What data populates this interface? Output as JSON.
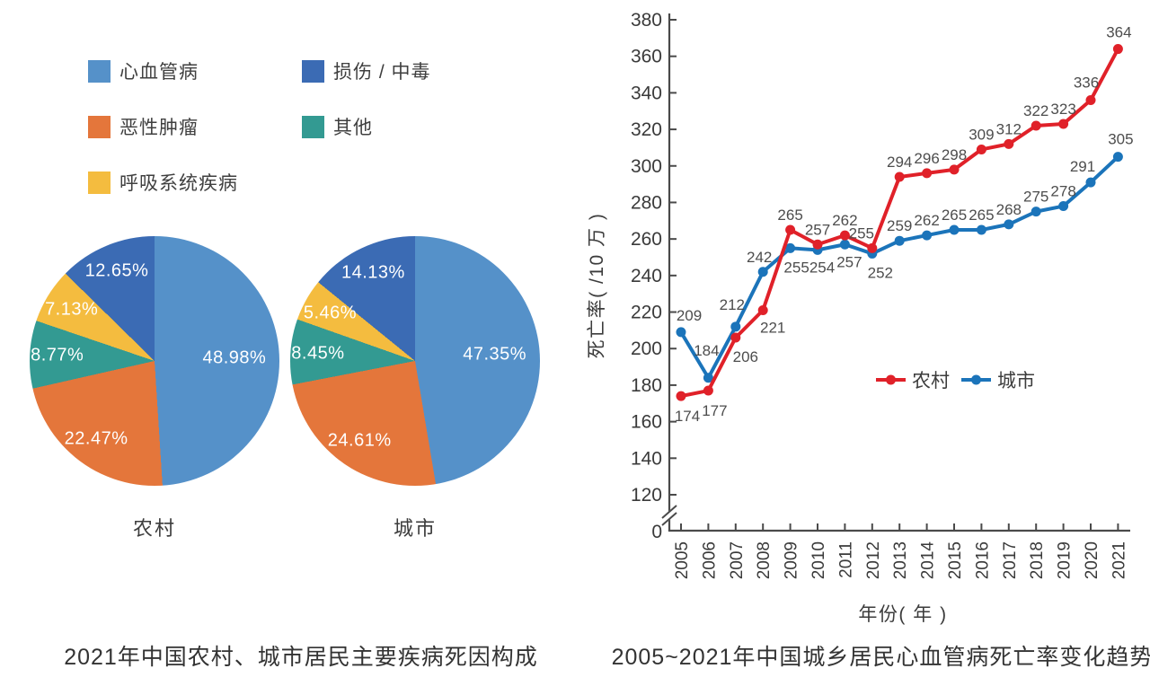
{
  "page": {
    "background": "#ffffff"
  },
  "chart_data": [
    {
      "type": "pie",
      "title": "2021年中国农村、城市居民主要疾病死因构成",
      "unit": "%",
      "legend": [
        {
          "label": "心血管病",
          "color": "#5591c9"
        },
        {
          "label": "恶性肿瘤",
          "color": "#e4763b"
        },
        {
          "label": "呼吸系统疾病",
          "color": "#f4bc3f"
        },
        {
          "label": "损伤 / 中毒",
          "color": "#3b6bb4"
        },
        {
          "label": "其他",
          "color": "#339a92"
        }
      ],
      "pies": [
        {
          "label": "农村",
          "slices": [
            {
              "category": "心血管病",
              "value": 48.98
            },
            {
              "category": "恶性肿瘤",
              "value": 22.47
            },
            {
              "category": "其他",
              "value": 8.77
            },
            {
              "category": "呼吸系统疾病",
              "value": 7.13
            },
            {
              "category": "损伤 / 中毒",
              "value": 12.65
            }
          ]
        },
        {
          "label": "城市",
          "slices": [
            {
              "category": "心血管病",
              "value": 47.35
            },
            {
              "category": "恶性肿瘤",
              "value": 24.61
            },
            {
              "category": "其他",
              "value": 8.45
            },
            {
              "category": "呼吸系统疾病",
              "value": 5.46
            },
            {
              "category": "损伤 / 中毒",
              "value": 14.13
            }
          ]
        }
      ]
    },
    {
      "type": "line",
      "title": "2005~2021年中国城乡居民心血管病死亡率变化趋势",
      "xlabel": "年份( 年 )",
      "ylabel": "死亡率( /10 万 )",
      "x": [
        2005,
        2006,
        2007,
        2008,
        2009,
        2010,
        2011,
        2012,
        2013,
        2014,
        2015,
        2016,
        2017,
        2018,
        2019,
        2020,
        2021
      ],
      "series": [
        {
          "name": "农村",
          "color": "#e02129",
          "values": [
            174,
            177,
            206,
            221,
            265,
            257,
            262,
            255,
            294,
            296,
            298,
            309,
            312,
            322,
            323,
            336,
            364
          ]
        },
        {
          "name": "城市",
          "color": "#1b74ba",
          "values": [
            209,
            184,
            212,
            242,
            255,
            254,
            257,
            252,
            259,
            262,
            265,
            265,
            268,
            275,
            278,
            291,
            305
          ]
        }
      ],
      "ylim": [
        0,
        380
      ],
      "yticks": [
        0,
        120,
        140,
        160,
        180,
        200,
        220,
        240,
        260,
        280,
        300,
        320,
        340,
        360,
        380
      ],
      "axis_break_between": [
        0,
        120
      ],
      "grid": false,
      "legend_position": "inside-right-middle"
    }
  ]
}
